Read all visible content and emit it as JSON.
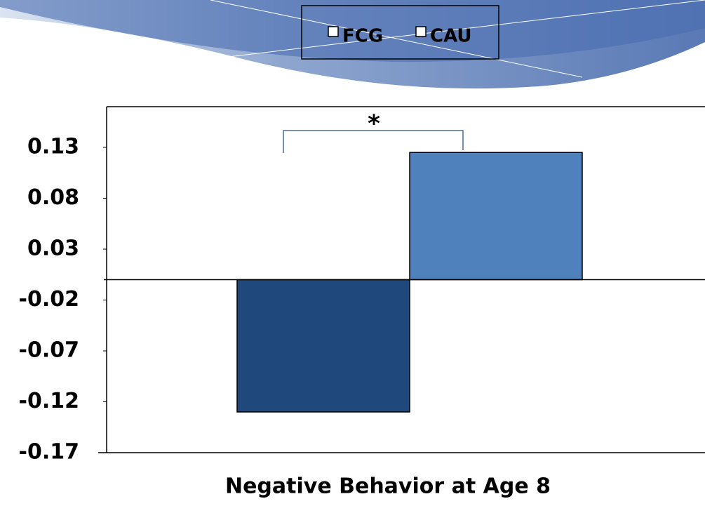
{
  "chart_data": {
    "type": "bar",
    "categories": [
      "Negative Behavior at Age 8"
    ],
    "series": [
      {
        "name": "FCG",
        "color": "#1f497d",
        "values": [
          -0.13
        ]
      },
      {
        "name": "CAU",
        "color": "#4f81bd",
        "values": [
          0.125
        ]
      }
    ],
    "ylim": [
      -0.17,
      0.17
    ],
    "yticks": [
      0.13,
      0.08,
      0.03,
      -0.02,
      -0.07,
      -0.12,
      -0.17
    ],
    "annotation": "*"
  }
}
